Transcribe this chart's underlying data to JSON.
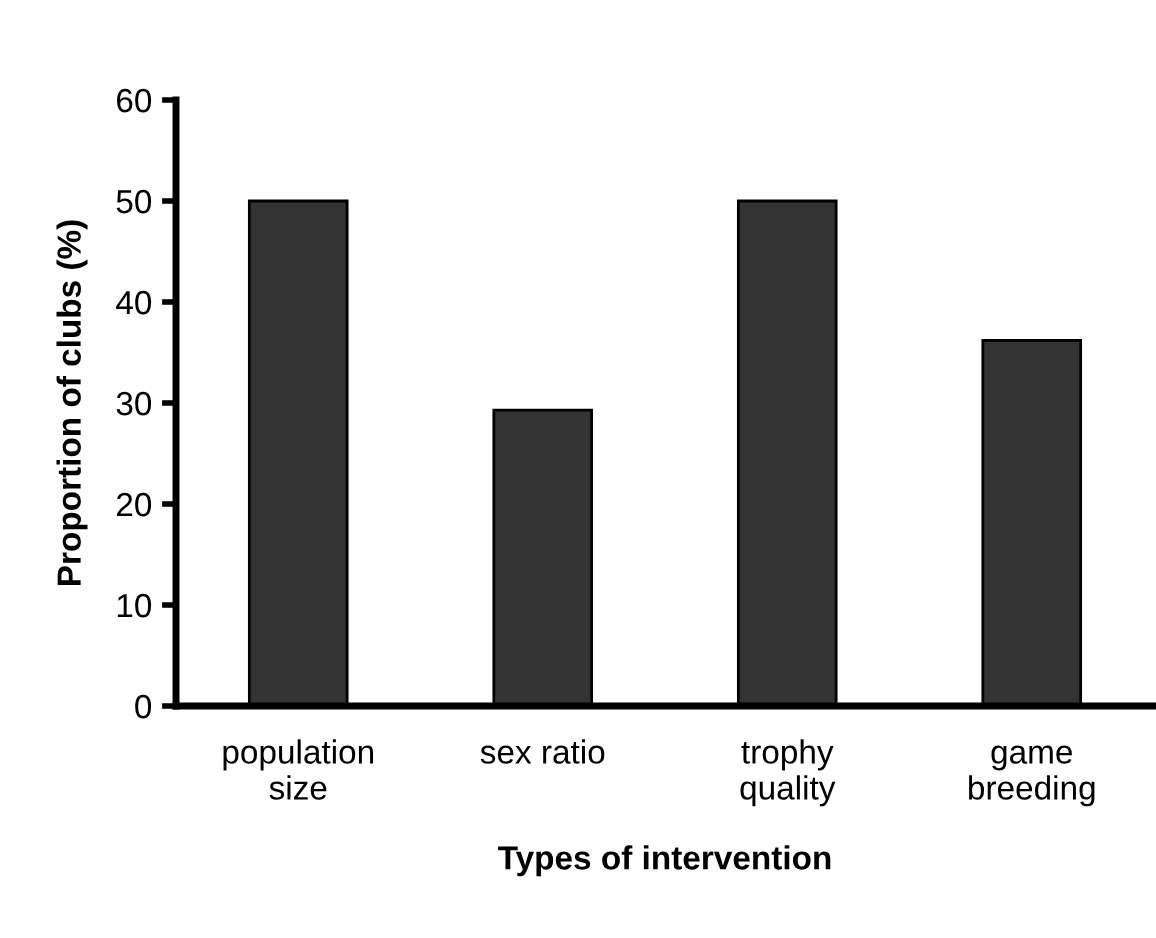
{
  "chart_data": {
    "type": "bar",
    "xlabel": "Types of intervention",
    "ylabel": "Proportion of clubs (%)",
    "categories": [
      "population\nsize",
      "sex ratio",
      "trophy\nquality",
      "game\nbreeding"
    ],
    "values": [
      50,
      29.3,
      50,
      36.2
    ],
    "color": "#333333",
    "ylim": [
      0,
      60
    ],
    "yticks": [
      0,
      10,
      20,
      30,
      40,
      50,
      60
    ],
    "grid": false
  }
}
